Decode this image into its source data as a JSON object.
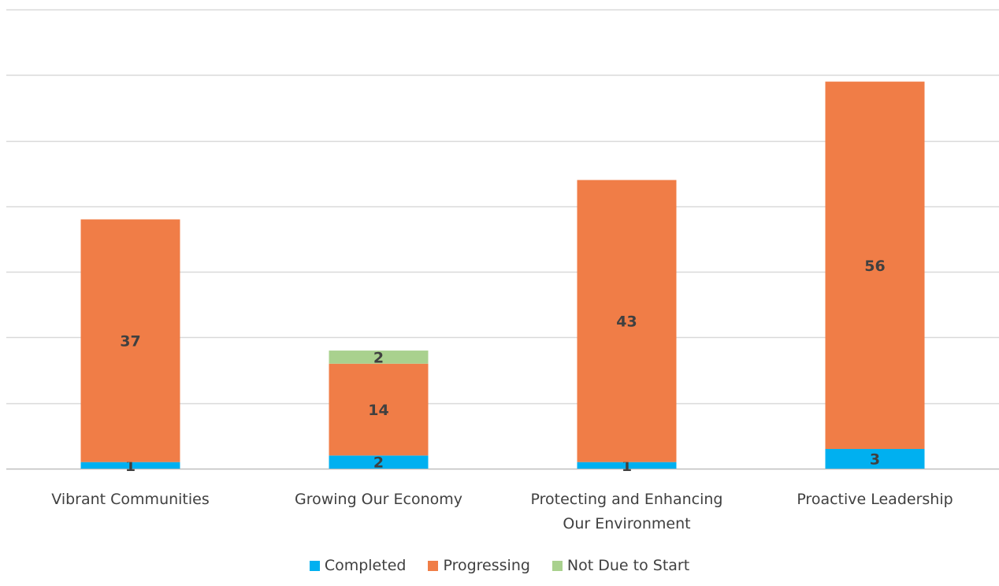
{
  "chart_data": {
    "type": "bar",
    "stacked": true,
    "categories": [
      [
        "Vibrant Communities"
      ],
      [
        "Growing Our Economy"
      ],
      [
        "Protecting and Enhancing",
        "Our Environment"
      ],
      [
        "Proactive Leadership"
      ]
    ],
    "series": [
      {
        "name": "Completed",
        "color": "#00B0F0",
        "values": [
          1,
          2,
          1,
          3
        ]
      },
      {
        "name": "Progressing",
        "color": "#F07D47",
        "values": [
          37,
          14,
          43,
          56
        ]
      },
      {
        "name": "Not Due to Start",
        "color": "#A9D18E",
        "values": [
          0,
          2,
          0,
          0
        ]
      }
    ],
    "data_labels": true,
    "ylim": [
      0,
      70
    ],
    "grid": true,
    "y_tick_labels_shown": false,
    "legend_position": "bottom"
  }
}
